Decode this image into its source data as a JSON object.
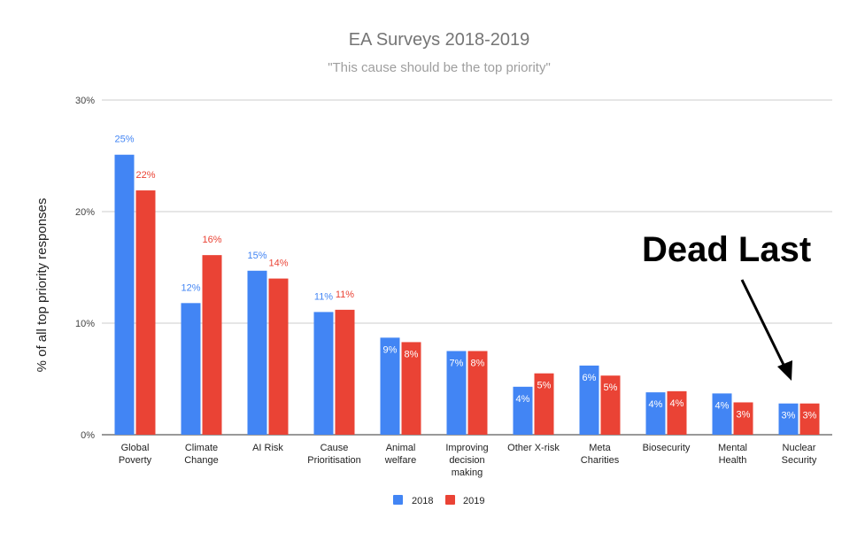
{
  "chart_data": {
    "type": "bar",
    "title": "EA Surveys 2018-2019",
    "subtitle": "\"This cause should be the top priority\"",
    "xlabel": "",
    "ylabel": "% of all top priority responses",
    "ylim": [
      0,
      30
    ],
    "yticks": [
      "0%",
      "10%",
      "20%",
      "30%"
    ],
    "grid": true,
    "legend_position": "bottom",
    "categories": [
      [
        "Global",
        "Poverty"
      ],
      [
        "Climate",
        "Change"
      ],
      [
        "AI Risk"
      ],
      [
        "Cause",
        "Prioritisation"
      ],
      [
        "Animal",
        "welfare"
      ],
      [
        "Improving",
        "decision",
        "making"
      ],
      [
        "Other X-risk"
      ],
      [
        "Meta",
        "Charities"
      ],
      [
        "Biosecurity"
      ],
      [
        "Mental",
        "Health"
      ],
      [
        "Nuclear",
        "Security"
      ]
    ],
    "series": [
      {
        "name": "2018",
        "color": "#4285f4",
        "values": [
          25.1,
          11.8,
          14.7,
          11.0,
          8.7,
          7.5,
          4.3,
          6.2,
          3.8,
          3.7,
          2.8
        ],
        "labels": [
          "25%",
          "12%",
          "15%",
          "11%",
          "9%",
          "7%",
          "4%",
          "6%",
          "4%",
          "4%",
          "3%"
        ]
      },
      {
        "name": "2019",
        "color": "#ea4335",
        "values": [
          21.9,
          16.1,
          14.0,
          11.2,
          8.3,
          7.5,
          5.5,
          5.3,
          3.9,
          2.9,
          2.8
        ],
        "labels": [
          "22%",
          "16%",
          "14%",
          "11%",
          "8%",
          "8%",
          "5%",
          "5%",
          "4%",
          "3%",
          "3%"
        ]
      }
    ],
    "annotation": {
      "text": "Dead Last",
      "points_to": "Nuclear Security"
    }
  }
}
